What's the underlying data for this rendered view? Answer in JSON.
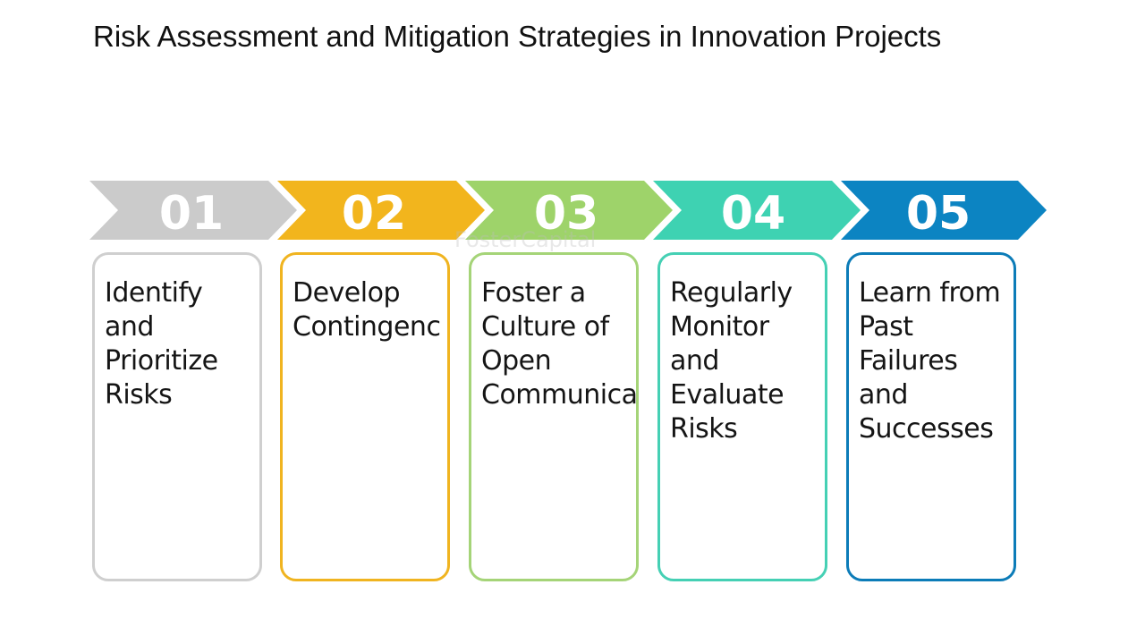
{
  "title": "Risk Assessment and Mitigation Strategies in Innovation Projects",
  "watermark": "FosterCapital",
  "steps": [
    {
      "number": "01",
      "text": "Identify\nand\nPrioritize\nRisks",
      "color": "#cbcbcb",
      "border": "#cfcfcf"
    },
    {
      "number": "02",
      "text": "Develop\nContingenc",
      "color": "#f2b51d",
      "border": "#f0b420"
    },
    {
      "number": "03",
      "text": "Foster a\nCulture of\nOpen\nCommunica",
      "color": "#9ed36a",
      "border": "#a5d478"
    },
    {
      "number": "04",
      "text": "Regularly\nMonitor\nand\nEvaluate\nRisks",
      "color": "#3ed2b2",
      "border": "#45d0b4"
    },
    {
      "number": "05",
      "text": "Learn from\nPast\nFailures\nand\nSuccesses",
      "color": "#0c84c2",
      "border": "#0c7cb8"
    }
  ]
}
